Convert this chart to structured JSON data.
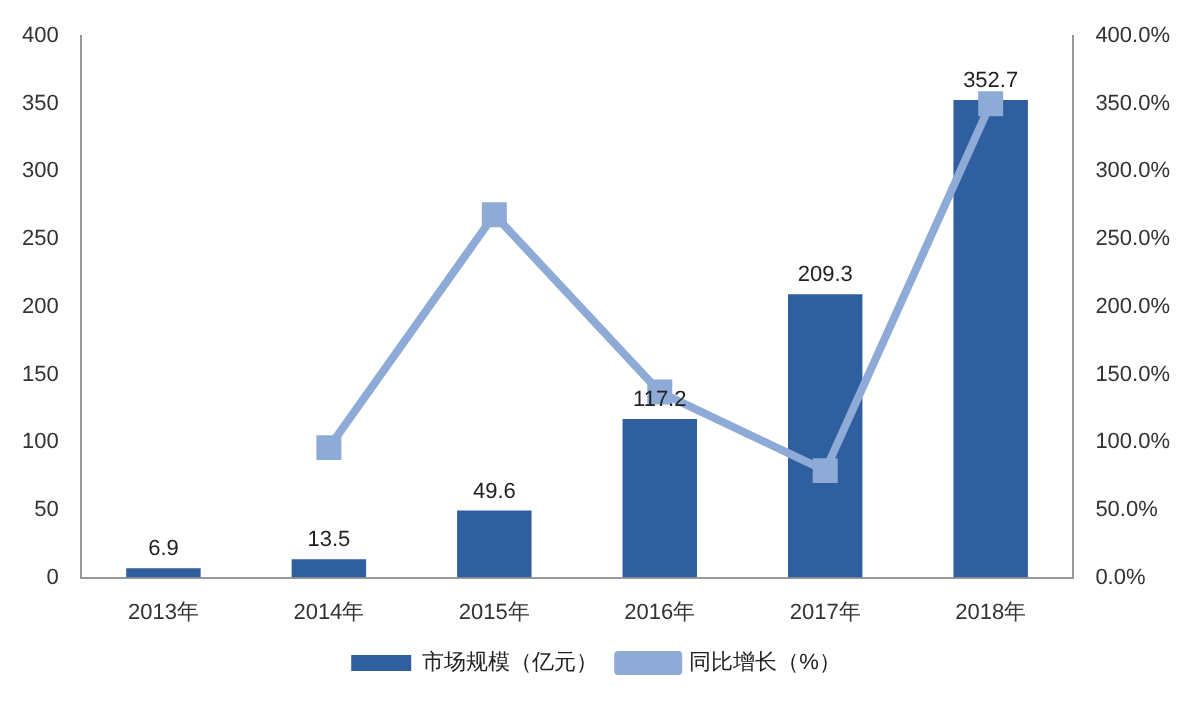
{
  "chart_data": {
    "type": "bar",
    "categories": [
      "2013年",
      "2014年",
      "2015年",
      "2016年",
      "2017年",
      "2018年"
    ],
    "series": [
      {
        "name": "市场规模（亿元）",
        "color": "#2f5f9e",
        "values": [
          6.9,
          13.5,
          49.6,
          117.2,
          209.3,
          352.7
        ],
        "value_labels": [
          "6.9",
          "13.5",
          "49.6",
          "117.2",
          "209.3",
          "352.7"
        ]
      },
      {
        "name": "同比增长（%）",
        "type": "line",
        "axis": "y2",
        "color": "#8eaad6",
        "marker": "square",
        "values": [
          null,
          96,
          268,
          137,
          79,
          350
        ]
      }
    ],
    "ylim": [
      0,
      400
    ],
    "yticks": [
      0,
      50,
      100,
      150,
      200,
      250,
      300,
      350,
      400
    ],
    "y2lim": [
      0,
      400
    ],
    "y2ticks": [
      {
        "value": 0,
        "label": "0.0%"
      },
      {
        "value": 50,
        "label": "50.0%"
      },
      {
        "value": 100,
        "label": "100.0%"
      },
      {
        "value": 150,
        "label": "150.0%"
      },
      {
        "value": 200,
        "label": "200.0%"
      },
      {
        "value": 250,
        "label": "250.0%"
      },
      {
        "value": 300,
        "label": "300.0%"
      },
      {
        "value": 350,
        "label": "350.0%"
      },
      {
        "value": 400,
        "label": "400.0%"
      }
    ],
    "grid": false,
    "legend": "bottom"
  }
}
